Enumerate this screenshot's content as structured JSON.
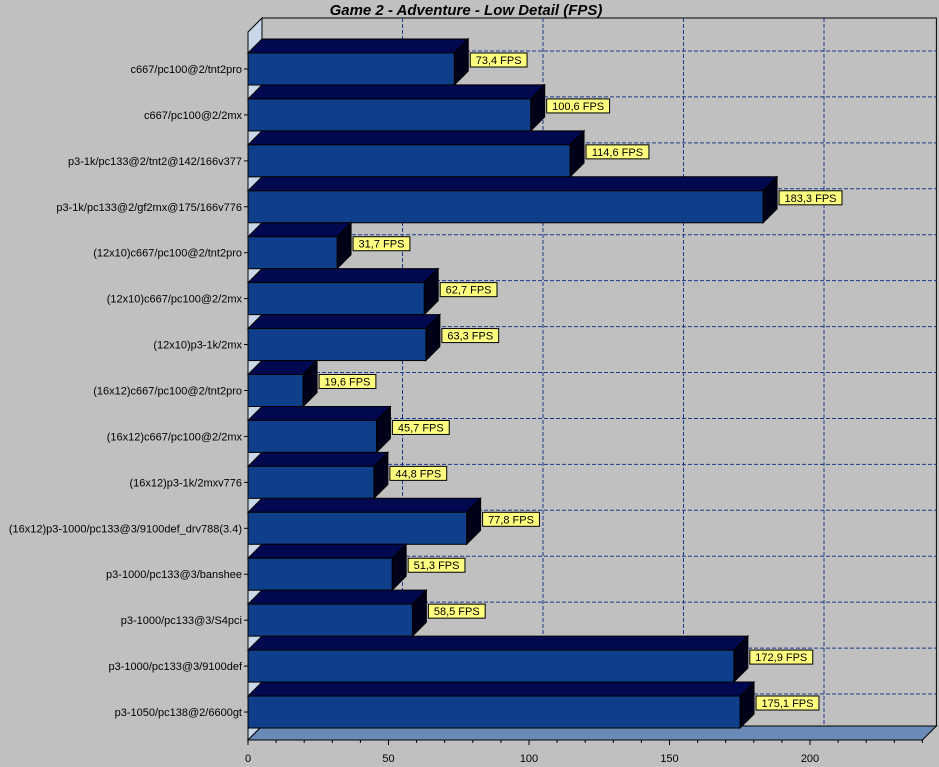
{
  "chart_data": {
    "type": "bar",
    "orientation": "horizontal",
    "title": "Game 2 - Adventure - Low Detail (FPS)",
    "xlabel": "",
    "ylabel": "",
    "xlim": [
      0,
      240
    ],
    "xticks": [
      0,
      50,
      100,
      150,
      200
    ],
    "grid": true,
    "value_suffix": " FPS",
    "categories": [
      "c667/pc100@2/tnt2pro",
      "c667/pc100@2/2mx",
      "p3-1k/pc133@2/tnt2@142/166v377",
      "p3-1k/pc133@2/gf2mx@175/166v776",
      "(12x10)c667/pc100@2/tnt2pro",
      "(12x10)c667/pc100@2/2mx",
      "(12x10)p3-1k/2mx",
      "(16x12)c667/pc100@2/tnt2pro",
      "(16x12)c667/pc100@2/2mx",
      "(16x12)p3-1k/2mxv776",
      "(16x12)p3-1000/pc133@3/9100def_drv788(3.4)",
      "p3-1000/pc133@3/banshee",
      "p3-1000/pc133@3/S4pci",
      "p3-1000/pc133@3/9100def",
      "p3-1050/pc138@2/6600gt"
    ],
    "values": [
      73.4,
      100.6,
      114.6,
      183.3,
      31.7,
      62.7,
      63.3,
      19.6,
      45.7,
      44.8,
      77.8,
      51.3,
      58.5,
      172.9,
      175.1
    ],
    "value_labels": [
      "73,4 FPS",
      "100,6 FPS",
      "114,6 FPS",
      "183,3 FPS",
      "31,7 FPS",
      "62,7 FPS",
      "63,3 FPS",
      "19,6 FPS",
      "45,7 FPS",
      "44,8 FPS",
      "77,8 FPS",
      "51,3 FPS",
      "58,5 FPS",
      "172,9 FPS",
      "175,1 FPS"
    ],
    "colors": {
      "bar_front": "#0f3f8a",
      "bar_top": "#000850",
      "bar_side": "#000018",
      "label_bg": "#ffff80",
      "floor": "#6a8ab8",
      "grid": "#1a3a8a"
    }
  }
}
